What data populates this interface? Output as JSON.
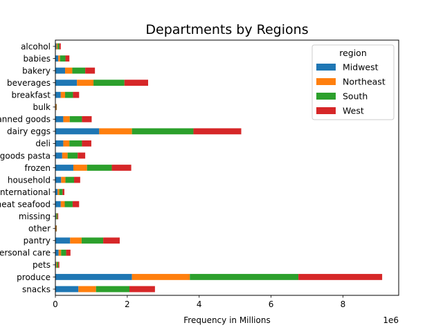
{
  "chart_data": {
    "type": "bar",
    "orientation": "horizontal",
    "stacked": true,
    "title": "Departments by Regions",
    "xlabel": "Frequency in Millions",
    "ylabel": "",
    "x_offset_label": "1e6",
    "x_tick_labels": [
      "0",
      "2",
      "4",
      "6",
      "8"
    ],
    "xlim": [
      0,
      9.55
    ],
    "x_scale_multiplier": 1000000,
    "grid": false,
    "legend": {
      "title": "region",
      "placement": "top-right"
    },
    "categories": [
      "alcohol",
      "babies",
      "bakery",
      "beverages",
      "breakfast",
      "bulk",
      "canned goods",
      "dairy eggs",
      "deli",
      "dry goods pasta",
      "frozen",
      "household",
      "international",
      "meat seafood",
      "missing",
      "other",
      "pantry",
      "personal care",
      "pets",
      "produce",
      "snacks"
    ],
    "series": [
      {
        "name": "Midwest",
        "color": "#1f77b4",
        "values": [
          0.03,
          0.08,
          0.27,
          0.6,
          0.15,
          0.01,
          0.22,
          1.22,
          0.22,
          0.19,
          0.5,
          0.16,
          0.06,
          0.15,
          0.02,
          0.01,
          0.41,
          0.09,
          0.02,
          2.13,
          0.64
        ]
      },
      {
        "name": "Northeast",
        "color": "#ff7f0e",
        "values": [
          0.03,
          0.05,
          0.2,
          0.46,
          0.12,
          0.01,
          0.18,
          0.91,
          0.17,
          0.15,
          0.38,
          0.12,
          0.05,
          0.11,
          0.01,
          0.01,
          0.32,
          0.07,
          0.02,
          1.61,
          0.49
        ]
      },
      {
        "name": "South",
        "color": "#2ca02c",
        "values": [
          0.05,
          0.15,
          0.36,
          0.86,
          0.22,
          0.01,
          0.34,
          1.71,
          0.35,
          0.28,
          0.69,
          0.24,
          0.09,
          0.22,
          0.03,
          0.01,
          0.6,
          0.14,
          0.04,
          3.02,
          0.93
        ]
      },
      {
        "name": "West",
        "color": "#d62728",
        "values": [
          0.04,
          0.11,
          0.27,
          0.66,
          0.17,
          0.01,
          0.27,
          1.33,
          0.26,
          0.21,
          0.54,
          0.17,
          0.05,
          0.18,
          0.02,
          0.01,
          0.46,
          0.12,
          0.03,
          2.33,
          0.71
        ]
      }
    ]
  }
}
